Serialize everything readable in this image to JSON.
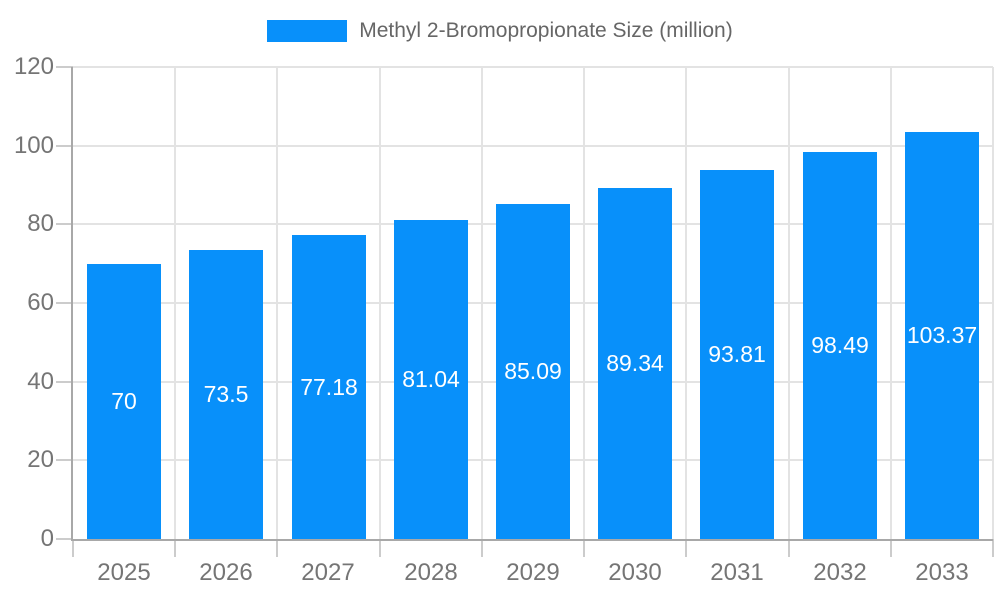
{
  "legend": {
    "label": "Methyl 2-Bromopropionate Size (million)",
    "swatch_color": "#0890fa"
  },
  "chart_data": {
    "type": "bar",
    "title": "Methyl 2-Bromopropionate Size (million)",
    "categories": [
      "2025",
      "2026",
      "2027",
      "2028",
      "2029",
      "2030",
      "2031",
      "2032",
      "2033"
    ],
    "series": [
      {
        "name": "Methyl 2-Bromopropionate Size (million)",
        "values": [
          70,
          73.5,
          77.18,
          81.04,
          85.09,
          89.34,
          93.81,
          98.49,
          103.37
        ]
      }
    ],
    "value_labels": [
      "70",
      "73.5",
      "77.18",
      "81.04",
      "85.09",
      "89.34",
      "93.81",
      "98.49",
      "103.37"
    ],
    "xlabel": "",
    "ylabel": "",
    "ylim": [
      0,
      120
    ],
    "yticks": [
      0,
      20,
      40,
      60,
      80,
      100,
      120
    ],
    "grid": true,
    "legend_position": "top",
    "colors": {
      "bar": "#0890fa",
      "value_label": "#ffffff",
      "gridline": "#e3e3e3",
      "axis_line": "#a8a8a8",
      "tick": "#cccccc",
      "axis_label": "#757575",
      "legend_text": "#666666",
      "background": "#ffffff"
    }
  }
}
